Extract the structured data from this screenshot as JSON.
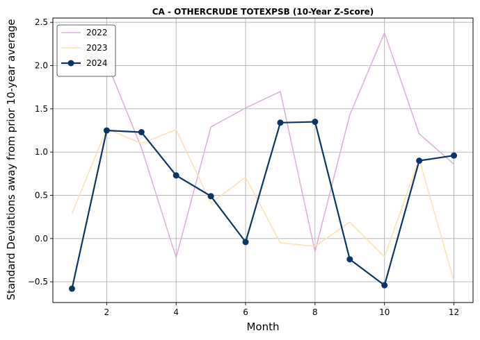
{
  "chart_data": {
    "type": "line",
    "title": "CA - OTHERCRUDE TOTEXPSB (10-Year Z-Score)",
    "xlabel": "Month",
    "ylabel": "Standard Deviations away from prior 10-year average",
    "x": [
      1,
      2,
      3,
      4,
      5,
      6,
      7,
      8,
      9,
      10,
      11,
      12
    ],
    "xticks": [
      2,
      4,
      6,
      8,
      10,
      12
    ],
    "xtick_labels": [
      "2",
      "4",
      "6",
      "8",
      "10",
      "12"
    ],
    "yticks": [
      -0.5,
      0.0,
      0.5,
      1.0,
      1.5,
      2.0,
      2.5
    ],
    "ytick_labels": [
      "−0.5",
      "0.0",
      "0.5",
      "1.0",
      "1.5",
      "2.0",
      "2.5"
    ],
    "xlim": [
      0.45,
      12.55
    ],
    "ylim": [
      -0.74,
      2.55
    ],
    "grid": true,
    "legend_position": "top-left",
    "series": [
      {
        "name": "2022",
        "color": "#dcaedb",
        "marker": false,
        "values": [
          2.25,
          2.04,
          1.05,
          -0.22,
          1.29,
          1.51,
          1.7,
          -0.15,
          1.43,
          2.38,
          1.21,
          0.86
        ]
      },
      {
        "name": "2023",
        "color": "#fde0b0",
        "marker": false,
        "values": [
          0.29,
          1.27,
          1.1,
          1.26,
          0.41,
          0.71,
          -0.05,
          -0.09,
          0.19,
          -0.21,
          0.92,
          -0.49
        ]
      },
      {
        "name": "2024",
        "color": "#0c3566",
        "marker": true,
        "values": [
          -0.58,
          1.25,
          1.23,
          0.73,
          0.49,
          -0.04,
          1.34,
          1.35,
          -0.24,
          -0.54,
          0.9,
          0.96
        ]
      }
    ]
  }
}
